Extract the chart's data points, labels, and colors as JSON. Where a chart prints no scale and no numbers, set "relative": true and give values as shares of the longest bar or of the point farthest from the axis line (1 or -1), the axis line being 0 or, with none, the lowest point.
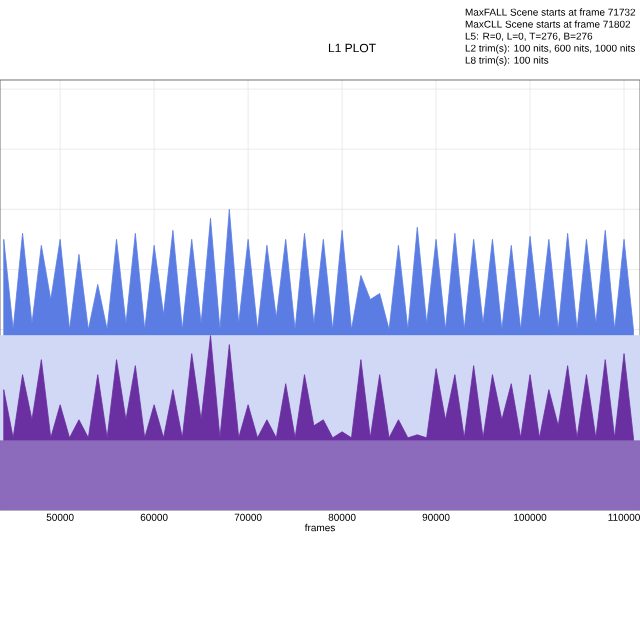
{
  "chart_data": {
    "type": "area",
    "title": "L1 PLOT",
    "xlabel": "frames",
    "relative": true,
    "grid": true,
    "tick_labels": "x",
    "annotations": [
      "MaxFALL Scene starts at frame 71732",
      "MaxCLL Scene starts at frame 71802",
      "L5: R=0, L=0, T=276, B=276",
      "L2 trim(s): 100 nits, 600 nits, 1000 nits",
      "L8 trim(s): 100 nits"
    ],
    "xlim": [
      43600,
      111700
    ],
    "xticks": [
      50000,
      60000,
      70000,
      80000,
      90000,
      100000,
      110000
    ],
    "series": [
      {
        "color": "#5b7de3",
        "x": [
          44000,
          45000,
          46000,
          47000,
          48000,
          49000,
          50000,
          51000,
          52000,
          53000,
          54000,
          55000,
          56000,
          57000,
          58000,
          59000,
          60000,
          61000,
          62000,
          63000,
          64000,
          65000,
          66000,
          67000,
          68000,
          69000,
          70000,
          71000,
          72000,
          73000,
          74000,
          75000,
          76000,
          77000,
          78000,
          79000,
          80000,
          81000,
          82000,
          83000,
          84000,
          85000,
          86000,
          87000,
          88000,
          89000,
          90000,
          91000,
          92000,
          93000,
          94000,
          95000,
          96000,
          97000,
          98000,
          99000,
          100000,
          101000,
          102000,
          103000,
          104000,
          105000,
          106000,
          107000,
          108000,
          109000,
          110000,
          111000
        ],
        "values": [
          0.9,
          0.6,
          0.92,
          0.62,
          0.88,
          0.7,
          0.9,
          0.6,
          0.85,
          0.6,
          0.75,
          0.6,
          0.9,
          0.62,
          0.92,
          0.6,
          0.88,
          0.65,
          0.93,
          0.6,
          0.9,
          0.62,
          0.97,
          0.6,
          1.0,
          0.62,
          0.9,
          0.6,
          0.88,
          0.64,
          0.9,
          0.6,
          0.92,
          0.62,
          0.9,
          0.6,
          0.93,
          0.6,
          0.78,
          0.7,
          0.72,
          0.6,
          0.88,
          0.6,
          0.94,
          0.62,
          0.9,
          0.6,
          0.92,
          0.6,
          0.9,
          0.62,
          0.9,
          0.6,
          0.88,
          0.6,
          0.91,
          0.63,
          0.9,
          0.6,
          0.92,
          0.6,
          0.9,
          0.62,
          0.93,
          0.6,
          0.9,
          0.6
        ]
      },
      {
        "color": "#d0d8f5",
        "x": [
          43600,
          111700
        ],
        "values": [
          0.58,
          0.58
        ]
      },
      {
        "color": "#6a2fa0",
        "x": [
          44000,
          45000,
          46000,
          47000,
          48000,
          49000,
          50000,
          51000,
          52000,
          53000,
          54000,
          55000,
          56000,
          57000,
          58000,
          59000,
          60000,
          61000,
          62000,
          63000,
          64000,
          65000,
          66000,
          67000,
          68000,
          69000,
          70000,
          71000,
          72000,
          73000,
          74000,
          75000,
          76000,
          77000,
          78000,
          79000,
          80000,
          81000,
          82000,
          83000,
          84000,
          85000,
          86000,
          87000,
          88000,
          89000,
          90000,
          91000,
          92000,
          93000,
          94000,
          95000,
          96000,
          97000,
          98000,
          99000,
          100000,
          101000,
          102000,
          103000,
          104000,
          105000,
          106000,
          107000,
          108000,
          109000,
          110000,
          111000
        ],
        "values": [
          0.4,
          0.24,
          0.45,
          0.3,
          0.5,
          0.24,
          0.35,
          0.24,
          0.3,
          0.24,
          0.45,
          0.24,
          0.5,
          0.3,
          0.48,
          0.24,
          0.35,
          0.24,
          0.4,
          0.24,
          0.52,
          0.3,
          0.58,
          0.24,
          0.55,
          0.24,
          0.35,
          0.24,
          0.3,
          0.24,
          0.42,
          0.24,
          0.45,
          0.28,
          0.3,
          0.24,
          0.26,
          0.24,
          0.5,
          0.24,
          0.45,
          0.24,
          0.3,
          0.24,
          0.25,
          0.24,
          0.47,
          0.3,
          0.45,
          0.24,
          0.48,
          0.24,
          0.45,
          0.3,
          0.42,
          0.24,
          0.45,
          0.24,
          0.4,
          0.28,
          0.48,
          0.24,
          0.45,
          0.24,
          0.5,
          0.24,
          0.52,
          0.24
        ]
      },
      {
        "color": "#8c6bbd",
        "x": [
          43600,
          111700
        ],
        "values": [
          0.23,
          0.23
        ]
      }
    ]
  }
}
